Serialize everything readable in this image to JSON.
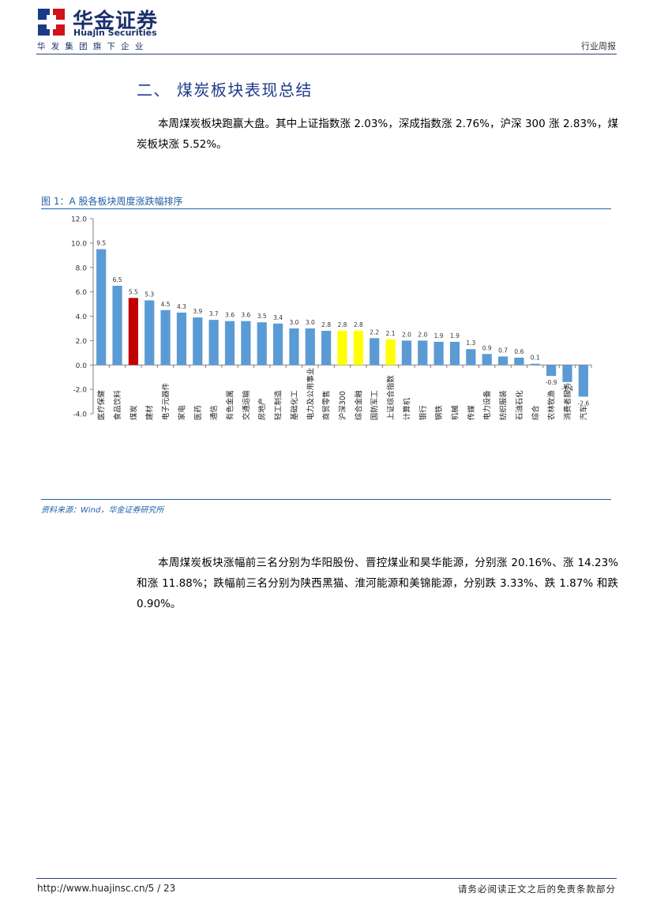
{
  "header": {
    "brand_cn": "华金证券",
    "brand_en": "Huajin Securities",
    "group": "华发集团旗下企业",
    "report_type": "行业周报"
  },
  "section": {
    "title": "二、 煤炭板块表现总结",
    "para1": "本周煤炭板块跑赢大盘。其中上证指数涨 2.03%，深成指数涨 2.76%，沪深 300 涨 2.83%，煤炭板块涨 5.52%。",
    "para2": "本周煤炭板块涨幅前三名分别为华阳股份、晋控煤业和昊华能源，分别涨 20.16%、涨 14.23% 和涨 11.88%；跌幅前三名分别为陕西黑猫、淮河能源和美锦能源，分别跌 3.33%、跌 1.87% 和跌 0.90%。"
  },
  "figure": {
    "title": "图 1：A 股各板块周度涨跌幅排序",
    "source": "资料来源：Wind，华金证券研究所"
  },
  "chart_data": {
    "type": "bar",
    "title": "",
    "xlabel": "",
    "ylabel": "",
    "ylim": [
      -4.0,
      12.0
    ],
    "yticks": [
      "12.0",
      "10.0",
      "8.0",
      "6.0",
      "4.0",
      "2.0",
      "0.0",
      "-2.0",
      "-4.0"
    ],
    "categories": [
      "医疗保健",
      "食品饮料",
      "煤炭",
      "建材",
      "电子元器件",
      "家电",
      "医药",
      "通信",
      "有色金属",
      "交通运输",
      "房地产",
      "轻工制造",
      "基础化工",
      "电力及公用事业",
      "商贸零售",
      "沪深300",
      "综合金融",
      "国防军工",
      "上证综合指数",
      "计算机",
      "银行",
      "钢铁",
      "机械",
      "传媒",
      "电力设备",
      "纺织服装",
      "石油石化",
      "综合",
      "农林牧渔",
      "消费者服务",
      "汽车"
    ],
    "values": [
      9.5,
      6.5,
      5.5,
      5.3,
      4.5,
      4.3,
      3.9,
      3.7,
      3.6,
      3.6,
      3.5,
      3.4,
      3.0,
      3.0,
      2.8,
      2.8,
      2.8,
      2.2,
      2.1,
      2.0,
      2.0,
      1.9,
      1.9,
      1.3,
      0.9,
      0.7,
      0.6,
      0.1,
      -0.9,
      -1.4,
      -2.6
    ],
    "labels": [
      "9.5",
      "6.5",
      "5.5",
      "5.3",
      "4.5",
      "4.3",
      "3.9",
      "3.7",
      "3.6",
      "3.6",
      "3.5",
      "3.4",
      "3.0",
      "3.0",
      "2.8",
      "2.8",
      "2.8",
      "2.2",
      "2.1",
      "2.0",
      "2.0",
      "1.9",
      "1.9",
      "1.3",
      "0.9",
      "0.7",
      "0.6",
      "0.1",
      "-0.9",
      "-1.4",
      "-2.6"
    ],
    "highlight": {
      "煤炭": "#c00000",
      "沪深300": "#ffff00",
      "综合金融": "#ffff00",
      "上证综合指数": "#ffff00"
    },
    "bar_color": "#5b9bd5"
  },
  "footer": {
    "url": "http://www.huajinsc.cn/",
    "page": "5 / 23",
    "disclaimer": "请务必阅读正文之后的免责条款部分"
  }
}
